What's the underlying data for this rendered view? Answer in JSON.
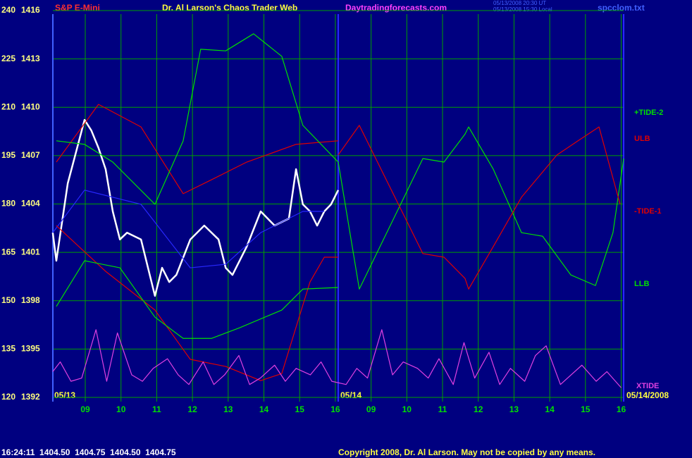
{
  "chart_data": {
    "type": "line",
    "title": "Dr. Al Larson's Chaos Trader Web",
    "symbol": "S&P E-Mini",
    "site": "Daytradingforecasts.com",
    "timestamps": [
      "05/13/2008 20:30 UT",
      "05/13/2008 15:30 Local"
    ],
    "file": "spcclom.txt",
    "date_labels": [
      "05/13",
      "05/14",
      "05/14/2008"
    ],
    "quote": "16:24:11  1404.50  1404.75  1404.50  1404.75",
    "copyright": "Copyright 2008, Dr. Al Larson. May not be copied by any means.",
    "background": "#000080",
    "grid": true,
    "xlim": [
      0.09,
      16.07
    ],
    "xticks": [
      {
        "value": 1,
        "label": "09"
      },
      {
        "value": 2,
        "label": "10"
      },
      {
        "value": 3,
        "label": "11"
      },
      {
        "value": 4,
        "label": "12"
      },
      {
        "value": 5,
        "label": "13"
      },
      {
        "value": 6,
        "label": "14"
      },
      {
        "value": 7,
        "label": "15"
      },
      {
        "value": 8,
        "label": "16"
      },
      {
        "value": 9,
        "label": "09"
      },
      {
        "value": 10,
        "label": "10"
      },
      {
        "value": 11,
        "label": "11"
      },
      {
        "value": 12,
        "label": "12"
      },
      {
        "value": 13,
        "label": "13"
      },
      {
        "value": 14,
        "label": "14"
      },
      {
        "value": 15,
        "label": "15"
      },
      {
        "value": 16,
        "label": "16"
      }
    ],
    "ylim": [
      120,
      240
    ],
    "yticks": [
      120,
      135,
      150,
      165,
      180,
      195,
      210,
      225,
      240
    ],
    "y2lim": [
      1392,
      1416
    ],
    "y2ticks": [
      1392,
      1395,
      1398,
      1401,
      1404,
      1407,
      1410,
      1413,
      1416
    ],
    "series": [
      {
        "color": "#ffffff",
        "x": [
          0.09,
          0.19,
          0.51,
          0.98,
          1.17,
          1.37,
          1.57,
          1.77,
          1.97,
          2.17,
          2.56,
          2.95,
          3.15,
          3.35,
          3.55,
          3.94,
          4.33,
          4.73,
          4.93,
          5.12,
          5.52,
          5.91,
          6.3,
          6.7,
          6.9,
          7.09,
          7.29,
          7.49,
          7.69,
          7.88,
          8.08
        ],
        "values": [
          171.1,
          162.4,
          186.4,
          206.1,
          202.8,
          197.4,
          190.8,
          177.7,
          169.0,
          171.1,
          169.0,
          151.5,
          160.2,
          155.8,
          158.0,
          169.0,
          173.3,
          169.0,
          160.2,
          158.0,
          166.8,
          177.7,
          173.3,
          175.5,
          190.8,
          179.9,
          177.7,
          173.3,
          177.7,
          179.9,
          184.3
        ]
      },
      {
        "color": "#2828ff",
        "x": [
          0.09,
          0.98,
          2.56,
          3.94,
          4.93,
          5.91,
          7.09,
          7.69
        ],
        "values": [
          171.1,
          184.3,
          179.9,
          160.2,
          161.3,
          171.1,
          177.7,
          177.7
        ]
      },
      {
        "name": "ULB",
        "color": "#e00000",
        "x": [
          0.19,
          1.37,
          2.56,
          3.74,
          4.53,
          5.52,
          6.9,
          8.08
        ],
        "values": [
          193.0,
          210.9,
          203.9,
          183.2,
          187.5,
          193.0,
          198.5,
          199.6
        ]
      },
      {
        "color": "#e00000",
        "x": [
          0.19,
          1.57,
          2.95,
          3.94,
          4.93,
          5.91,
          6.5,
          7.29,
          7.69,
          8.08
        ],
        "values": [
          173.3,
          159.1,
          147.1,
          131.8,
          129.6,
          125.2,
          127.4,
          155.8,
          163.5,
          163.5
        ]
      },
      {
        "color": "#00e000",
        "x": [
          0.19,
          0.98,
          1.77,
          2.95,
          3.74,
          4.23,
          4.93,
          5.71,
          6.5,
          7.09,
          8.08
        ],
        "values": [
          199.6,
          198.5,
          193.0,
          179.9,
          199.6,
          228.0,
          227.5,
          232.8,
          225.8,
          204.4,
          193.0
        ]
      },
      {
        "name": "LLB",
        "color": "#00e000",
        "x": [
          0.19,
          0.98,
          1.97,
          2.95,
          3.74,
          4.53,
          5.32,
          6.5,
          7.09,
          8.08
        ],
        "values": [
          148.2,
          162.4,
          160.2,
          144.9,
          138.3,
          138.3,
          141.6,
          147.1,
          153.6,
          154.1
        ]
      },
      {
        "name": "+TIDE-2",
        "color": "#00e000",
        "x": [
          8.08,
          8.67,
          10.45,
          11.04,
          11.63,
          11.73,
          12.42,
          13.21,
          13.8,
          14.59,
          15.28,
          15.77,
          16.07
        ],
        "values": [
          193.0,
          153.6,
          194.1,
          193.0,
          201.7,
          203.9,
          190.8,
          171.1,
          170.0,
          158.0,
          154.7,
          171.1,
          194.1
        ]
      },
      {
        "name": "-TIDE-1",
        "color": "#e00000",
        "x": [
          8.08,
          8.67,
          10.45,
          11.04,
          11.63,
          11.73,
          12.42,
          13.21,
          14.2,
          14.79,
          15.38,
          15.97
        ],
        "values": [
          195.2,
          204.4,
          164.6,
          163.5,
          156.9,
          153.6,
          166.8,
          182.1,
          195.2,
          199.6,
          203.9,
          179.9
        ]
      },
      {
        "name": "XTIDE",
        "color": "#e040e0",
        "x": [
          0.09,
          0.3,
          0.6,
          0.9,
          1.3,
          1.6,
          1.9,
          2.3,
          2.6,
          2.9,
          3.3,
          3.6,
          3.9,
          4.3,
          4.6,
          4.9,
          5.3,
          5.6,
          5.9,
          6.3,
          6.6,
          6.9,
          7.3,
          7.6,
          7.9,
          8.3,
          8.6,
          8.9,
          9.3,
          9.6,
          9.9,
          10.3,
          10.6,
          10.9,
          11.3,
          11.6,
          11.9,
          12.3,
          12.6,
          12.9,
          13.3,
          13.6,
          13.9,
          14.3,
          14.6,
          14.9,
          15.3,
          15.6,
          16.0
        ],
        "values": [
          128,
          131,
          125,
          126,
          141,
          125,
          140,
          127,
          125,
          129,
          132,
          127,
          124,
          131,
          124,
          127,
          133,
          124,
          126,
          130,
          125,
          129,
          127,
          131,
          125,
          124,
          129,
          126,
          141,
          127,
          131,
          129,
          126,
          132,
          124,
          137,
          126,
          134,
          124,
          129,
          125,
          133,
          136,
          124,
          127,
          130,
          125,
          128,
          123
        ]
      }
    ]
  }
}
